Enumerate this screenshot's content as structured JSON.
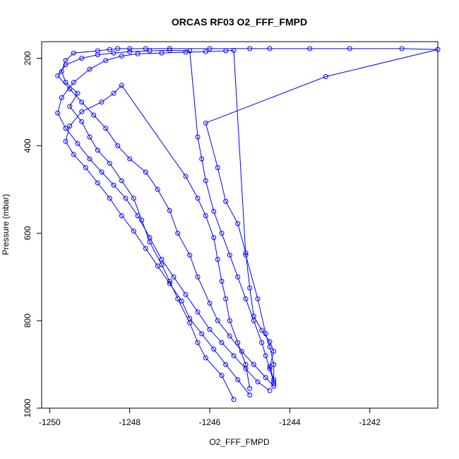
{
  "chart_data": {
    "type": "line",
    "title": "ORCAS RF03 O2_FFF_FMPD",
    "xlabel": "O2_FFF_FMPD",
    "ylabel": "Pressure (mbar)",
    "xlim": [
      -1250.2,
      -1240.3
    ],
    "ylim": [
      1000,
      162
    ],
    "y_reversed": true,
    "x_ticks": [
      -1250,
      -1248,
      -1246,
      -1244,
      -1242
    ],
    "y_ticks": [
      200,
      400,
      600,
      800,
      1000
    ],
    "grid": false,
    "legend": "none",
    "marker": "open-circle",
    "series_color": "#0000ff",
    "series": [
      {
        "x": [
          -1245.4,
          -1245.7,
          -1246.1,
          -1246.3,
          -1246.5,
          -1246.8,
          -1247.0,
          -1247.2,
          -1247.5,
          -1247.7,
          -1247.9,
          -1248.2,
          -1248.5,
          -1248.8,
          -1249.0,
          -1249.2,
          -1249.5,
          -1249.3,
          -1249.6,
          -1249.7,
          -1249.6,
          -1249.4,
          -1248.8,
          -1248.5,
          -1248.3,
          -1248.0,
          -1247.6,
          -1247.0,
          -1246.0,
          -1245.0,
          -1244.5,
          -1243.5,
          -1242.5,
          -1241.2,
          -1240.3,
          -1243.1,
          -1246.1,
          -1245.8,
          -1245.6,
          -1245.3,
          -1245.1,
          -1245.0,
          -1244.9,
          -1244.7,
          -1244.5,
          -1244.4,
          -1244.5,
          -1244.4
        ],
        "y": [
          980,
          925,
          885,
          850,
          805,
          750,
          710,
          672,
          620,
          570,
          520,
          480,
          440,
          410,
          380,
          345,
          310,
          280,
          255,
          230,
          205,
          188,
          183,
          180,
          178,
          178,
          178,
          178,
          178,
          178,
          178,
          178,
          178,
          178,
          180,
          242,
          348,
          450,
          527,
          578,
          645,
          725,
          790,
          822,
          848,
          870,
          905,
          935
        ]
      },
      {
        "x": [
          -1244.4,
          -1244.6,
          -1244.9,
          -1245.2,
          -1245.5,
          -1245.8,
          -1246.0,
          -1246.3,
          -1246.5,
          -1246.8,
          -1247.0,
          -1247.3,
          -1247.6,
          -1248.0,
          -1248.3,
          -1248.6,
          -1248.9,
          -1249.2,
          -1249.5,
          -1249.8,
          -1249.6,
          -1249.2,
          -1248.8,
          -1248.4,
          -1248.0,
          -1247.5,
          -1247.0,
          -1246.5,
          -1246.3,
          -1246.2,
          -1246.1,
          -1245.9,
          -1245.7,
          -1245.5,
          -1245.3,
          -1245.1,
          -1244.9,
          -1244.7,
          -1244.6,
          -1244.5,
          -1244.4
        ],
        "y": [
          950,
          930,
          900,
          870,
          835,
          800,
          760,
          700,
          650,
          600,
          548,
          500,
          460,
          430,
          400,
          360,
          330,
          300,
          270,
          240,
          215,
          200,
          192,
          188,
          185,
          183,
          182,
          183,
          380,
          430,
          480,
          550,
          600,
          650,
          700,
          750,
          800,
          850,
          880,
          910,
          940
        ]
      },
      {
        "x": [
          -1244.5,
          -1244.8,
          -1245.1,
          -1245.4,
          -1245.7,
          -1246.0,
          -1246.3,
          -1246.6,
          -1246.9,
          -1247.2,
          -1247.5,
          -1247.8,
          -1248.1,
          -1248.4,
          -1248.7,
          -1249.0,
          -1249.3,
          -1249.6,
          -1249.8,
          -1249.7,
          -1249.4,
          -1249.0,
          -1248.6,
          -1248.2,
          -1247.8,
          -1247.2,
          -1246.6,
          -1246.1,
          -1245.6,
          -1245.4,
          -1245.1,
          -1244.8,
          -1244.6,
          -1244.5,
          -1244.4,
          -1244.4
        ],
        "y": [
          960,
          940,
          910,
          880,
          850,
          820,
          780,
          740,
          700,
          660,
          610,
          560,
          520,
          490,
          460,
          430,
          395,
          360,
          325,
          290,
          255,
          225,
          205,
          195,
          190,
          188,
          186,
          185,
          183,
          182,
          650,
          750,
          830,
          860,
          900,
          945
        ]
      },
      {
        "x": [
          -1245.0,
          -1245.3,
          -1245.6,
          -1245.9,
          -1246.2,
          -1246.5,
          -1246.7,
          -1247.0,
          -1247.3,
          -1247.6,
          -1247.9,
          -1248.2,
          -1248.5,
          -1248.8,
          -1249.1,
          -1249.4,
          -1249.6,
          -1249.5,
          -1249.2,
          -1248.7,
          -1248.4,
          -1248.2,
          -1246.6,
          -1246.3,
          -1246.1,
          -1245.9,
          -1245.8,
          -1245.7,
          -1245.6,
          -1245.5,
          -1245.3,
          -1245.1,
          -1245.0
        ],
        "y": [
          970,
          935,
          900,
          865,
          830,
          795,
          755,
          715,
          675,
          635,
          595,
          560,
          520,
          485,
          450,
          420,
          390,
          355,
          322,
          300,
          280,
          262,
          470,
          520,
          560,
          610,
          660,
          710,
          750,
          800,
          850,
          900,
          955
        ]
      }
    ]
  }
}
